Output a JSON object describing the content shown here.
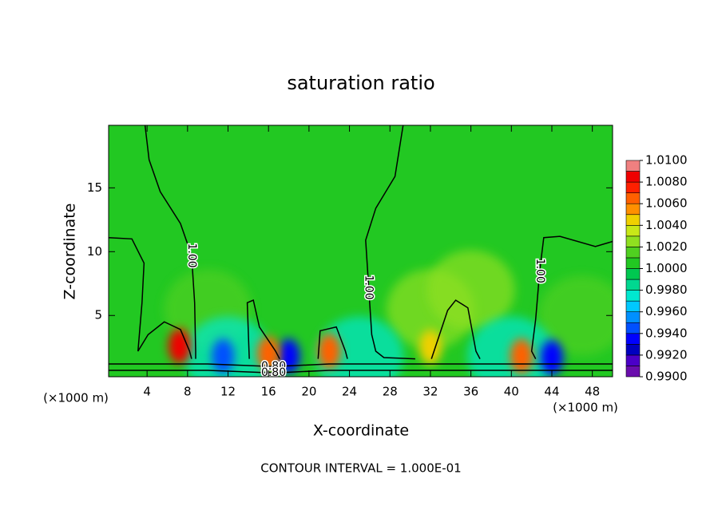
{
  "chart_data": {
    "type": "contour",
    "title": "saturation ratio",
    "x_label": "X-coordinate",
    "y_label": "Z-coordinate",
    "x_unit": "(×1000 m)",
    "y_unit": "(×1000 m)",
    "footer": "CONTOUR INTERVAL = 1.000E-01",
    "xlim": [
      0.2,
      50
    ],
    "ylim": [
      0.2,
      19.9
    ],
    "xticks": [
      4,
      8,
      12,
      16,
      20,
      24,
      28,
      32,
      36,
      40,
      44,
      48
    ],
    "yticks": [
      5,
      10,
      15
    ],
    "color_lim": [
      0.99,
      1.01
    ],
    "colors": [
      "#6a0dad",
      "#4b00c8",
      "#0000c0",
      "#0000ff",
      "#0050ff",
      "#0090ff",
      "#00c8ff",
      "#00e8d0",
      "#00d890",
      "#00c850",
      "#22c822",
      "#50d020",
      "#90e020",
      "#c8e818",
      "#f0d000",
      "#ff9000",
      "#ff6000",
      "#ff2000",
      "#f00000",
      "#f08080"
    ],
    "color_ticks": [
      {
        "value": 0.99,
        "label": "0.9900"
      },
      {
        "value": 0.992,
        "label": "0.9920"
      },
      {
        "value": 0.994,
        "label": "0.9940"
      },
      {
        "value": 0.996,
        "label": "0.9960"
      },
      {
        "value": 0.998,
        "label": "0.9980"
      },
      {
        "value": 1.0,
        "label": "1.0000"
      },
      {
        "value": 1.002,
        "label": "1.0020"
      },
      {
        "value": 1.004,
        "label": "1.0040"
      },
      {
        "value": 1.006,
        "label": "1.0060"
      },
      {
        "value": 1.008,
        "label": "1.0080"
      },
      {
        "value": 1.01,
        "label": "1.0100"
      }
    ],
    "base_value": 1.0005,
    "peaks": [
      {
        "x": 10,
        "z": 5.5,
        "value": 1.0015
      },
      {
        "x": 32,
        "z": 5.5,
        "value": 1.0025
      },
      {
        "x": 36,
        "z": 7,
        "value": 1.002
      },
      {
        "x": 47,
        "z": 5,
        "value": 1.0015
      },
      {
        "x": 25,
        "z": 1.8,
        "value": 0.997
      },
      {
        "x": 12,
        "z": 1.8,
        "value": 0.997
      },
      {
        "x": 40,
        "z": 1.8,
        "value": 0.997
      },
      {
        "x": 11.5,
        "z": 1.8,
        "value": 0.994
      },
      {
        "x": 18,
        "z": 1.8,
        "value": 0.993
      },
      {
        "x": 44,
        "z": 1.7,
        "value": 0.993
      },
      {
        "x": 7.2,
        "z": 2.6,
        "value": 1.008
      },
      {
        "x": 16,
        "z": 2.0,
        "value": 1.007
      },
      {
        "x": 22,
        "z": 2.2,
        "value": 1.006
      },
      {
        "x": 32,
        "z": 2.5,
        "value": 1.005
      },
      {
        "x": 41,
        "z": 1.8,
        "value": 1.006
      }
    ],
    "contours": [
      {
        "level": 1.0,
        "label": "1.00",
        "x": [
          3.8,
          4.2,
          5.3,
          7.3,
          8.4,
          8.7,
          8.8,
          8.8
        ],
        "z": [
          19.9,
          17.2,
          14.7,
          12.2,
          9.7,
          6.0,
          2.2,
          1.6
        ]
      },
      {
        "level": 1.0,
        "x": [
          0.2,
          2.5,
          3.7,
          3.5,
          3.1,
          4.1,
          5.7,
          7.3,
          8.2,
          8.4
        ],
        "z": [
          11.1,
          11.0,
          9.1,
          6.0,
          2.2,
          3.5,
          4.5,
          3.9,
          2.2,
          1.6
        ]
      },
      {
        "level": 1.0,
        "label": "1.00",
        "x": [
          29.3,
          28.5,
          26.6,
          25.6,
          25.9,
          26.2,
          26.6,
          27.4,
          30.5
        ],
        "z": [
          19.9,
          15.9,
          13.4,
          10.9,
          7.2,
          3.5,
          2.2,
          1.7,
          1.6
        ]
      },
      {
        "level": 1.0,
        "label": "1.00",
        "x": [
          50,
          48.3,
          44.8,
          43.2,
          42.8,
          42.4,
          42.0,
          42.4
        ],
        "z": [
          10.8,
          10.4,
          11.2,
          11.1,
          8.5,
          4.7,
          2.2,
          1.6
        ]
      },
      {
        "level": 1.0,
        "x": [
          32.1,
          33.7,
          34.5,
          35.7,
          36.5,
          36.9
        ],
        "z": [
          1.6,
          5.4,
          6.2,
          5.6,
          2.2,
          1.6
        ]
      },
      {
        "level": 1.0,
        "x": [
          14.1,
          13.9,
          14.5,
          15.1,
          16.7,
          17.1
        ],
        "z": [
          1.6,
          6.0,
          6.2,
          4.1,
          2.2,
          1.6
        ]
      },
      {
        "level": 1.0,
        "x": [
          20.9,
          21.1,
          22.7,
          23.6,
          23.8
        ],
        "z": [
          1.6,
          3.8,
          4.1,
          2.2,
          1.6
        ]
      },
      {
        "level": 0.8,
        "label": "0.80",
        "x": [
          0.2,
          10,
          16.5,
          22,
          50
        ],
        "z": [
          1.2,
          1.2,
          1.0,
          1.2,
          1.2
        ]
      },
      {
        "level": 0.8,
        "label": "0.80",
        "x": [
          0.2,
          10,
          16.5,
          22,
          50
        ],
        "z": [
          0.7,
          0.7,
          0.5,
          0.7,
          0.7
        ]
      }
    ]
  }
}
